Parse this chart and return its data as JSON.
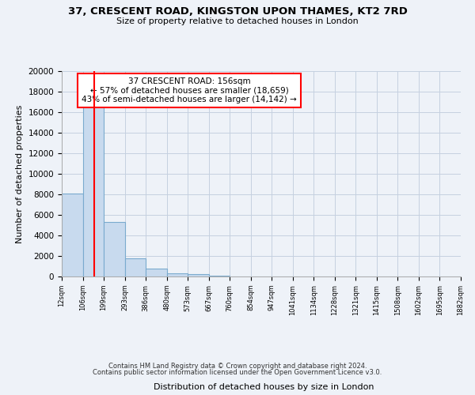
{
  "title": "37, CRESCENT ROAD, KINGSTON UPON THAMES, KT2 7RD",
  "subtitle": "Size of property relative to detached houses in London",
  "xlabel": "Distribution of detached houses by size in London",
  "ylabel": "Number of detached properties",
  "bar_values": [
    8100,
    16500,
    5300,
    1800,
    750,
    280,
    200,
    100,
    0,
    0,
    0,
    0,
    0,
    0,
    0,
    0,
    0,
    0,
    0
  ],
  "bin_labels": [
    "12sqm",
    "106sqm",
    "199sqm",
    "293sqm",
    "386sqm",
    "480sqm",
    "573sqm",
    "667sqm",
    "760sqm",
    "854sqm",
    "947sqm",
    "1041sqm",
    "1134sqm",
    "1228sqm",
    "1321sqm",
    "1415sqm",
    "1508sqm",
    "1602sqm",
    "1695sqm",
    "1882sqm"
  ],
  "bar_color": "#c8daee",
  "bar_edge_color": "#7aaace",
  "ylim": [
    0,
    20000
  ],
  "yticks": [
    0,
    2000,
    4000,
    6000,
    8000,
    10000,
    12000,
    14000,
    16000,
    18000,
    20000
  ],
  "annotation_title": "37 CRESCENT ROAD: 156sqm",
  "annotation_line1": "← 57% of detached houses are smaller (18,659)",
  "annotation_line2": "43% of semi-detached houses are larger (14,142) →",
  "footer_line1": "Contains HM Land Registry data © Crown copyright and database right 2024.",
  "footer_line2": "Contains public sector information licensed under the Open Government Licence v3.0.",
  "background_color": "#eef2f8",
  "plot_background_color": "#eef2f8",
  "grid_color": "#c5d0e0"
}
